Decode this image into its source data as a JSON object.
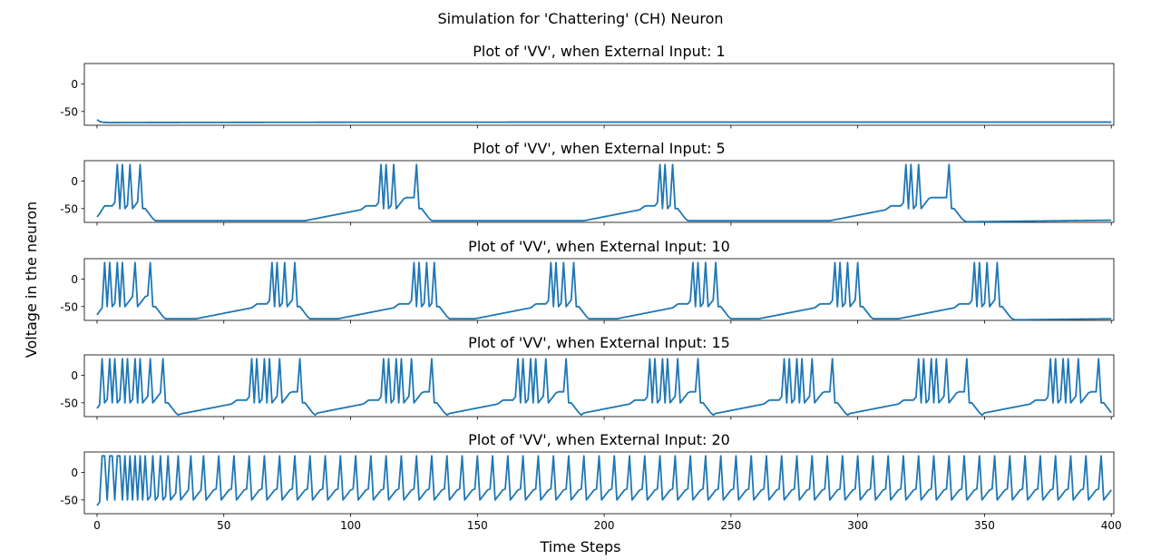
{
  "figure": {
    "suptitle": "Simulation for 'Chattering' (CH) Neuron",
    "xlabel": "Time Steps",
    "ylabel": "Voltage in the neuron"
  },
  "chart_data": [
    {
      "type": "line",
      "title": "Plot of 'VV', when External Input: 1",
      "xlim": [
        -5,
        401
      ],
      "ylim": [
        -75,
        37
      ],
      "xticks": [
        "0",
        "50",
        "100",
        "150",
        "200",
        "250",
        "300",
        "350",
        "400"
      ],
      "yticks": [
        "0",
        "-50"
      ],
      "color": "#1f77b4",
      "sim": {
        "input": 1,
        "steps": 401,
        "v0": -65
      },
      "x": [
        0,
        1,
        2,
        5,
        10,
        20,
        50,
        100,
        200,
        300,
        400
      ],
      "y": [
        -65,
        -68,
        -69.5,
        -70.2,
        -70.1,
        -70,
        -69.8,
        -69.5,
        -69.3,
        -69.3,
        -69.3
      ]
    },
    {
      "type": "line",
      "title": "Plot of 'VV', when External Input: 5",
      "xlim": [
        -5,
        401
      ],
      "ylim": [
        -75,
        37
      ],
      "xticks": [
        "0",
        "50",
        "100",
        "150",
        "200",
        "250",
        "300",
        "350",
        "400"
      ],
      "yticks": [
        "0",
        "-50"
      ],
      "color": "#1f77b4",
      "sim": {
        "input": 5,
        "steps": 401,
        "v0": -65
      },
      "spikes": [
        8,
        10,
        13,
        17,
        112,
        114,
        117,
        126,
        222,
        224,
        227,
        319,
        321,
        324,
        336
      ]
    },
    {
      "type": "line",
      "title": "Plot of 'VV', when External Input: 10",
      "xlim": [
        -5,
        401
      ],
      "ylim": [
        -75,
        37
      ],
      "xticks": [
        "0",
        "50",
        "100",
        "150",
        "200",
        "250",
        "300",
        "350",
        "400"
      ],
      "yticks": [
        "0",
        "-50"
      ],
      "color": "#1f77b4",
      "sim": {
        "input": 10,
        "steps": 401,
        "v0": -65
      },
      "spikes": [
        3,
        5,
        8,
        10,
        15,
        21,
        69,
        71,
        74,
        78,
        125,
        127,
        130,
        133,
        179,
        181,
        184,
        188,
        235,
        237,
        240,
        244,
        291,
        293,
        296,
        300,
        346,
        348,
        351,
        355
      ]
    },
    {
      "type": "line",
      "title": "Plot of 'VV', when External Input: 15",
      "xlim": [
        -5,
        401
      ],
      "ylim": [
        -75,
        37
      ],
      "xticks": [
        "0",
        "50",
        "100",
        "150",
        "200",
        "250",
        "300",
        "350",
        "400"
      ],
      "yticks": [
        "0",
        "-50"
      ],
      "color": "#1f77b4",
      "sim": {
        "input": 15,
        "steps": 401,
        "v0": -60
      },
      "spikes": [
        2,
        5,
        7,
        10,
        12,
        15,
        17,
        21,
        26,
        61,
        63,
        66,
        68,
        72,
        80,
        113,
        115,
        118,
        120,
        124,
        132,
        166,
        168,
        171,
        173,
        177,
        185,
        218,
        220,
        223,
        225,
        229,
        237,
        271,
        273,
        276,
        278,
        282,
        290,
        324,
        326,
        329,
        331,
        335,
        343,
        376,
        378,
        381,
        383,
        387,
        395
      ]
    },
    {
      "type": "line",
      "title": "Plot of 'VV', when External Input: 20",
      "xlim": [
        -5,
        401
      ],
      "ylim": [
        -75,
        37
      ],
      "xticks": [
        "0",
        "50",
        "100",
        "150",
        "200",
        "250",
        "300",
        "350",
        "400"
      ],
      "yticks": [
        "0",
        "-50"
      ],
      "color": "#1f77b4",
      "sim": {
        "input": 20,
        "steps": 401,
        "v0": -60
      },
      "spikes": [
        2,
        3,
        5,
        6,
        8,
        9,
        11,
        13,
        15,
        17,
        19,
        22,
        25,
        28,
        32,
        37,
        42,
        48,
        54,
        60,
        66,
        72,
        78,
        84,
        90,
        96,
        102,
        108,
        114,
        120,
        126,
        132,
        138,
        144,
        150,
        156,
        162,
        168,
        174,
        180,
        186,
        192,
        198,
        204,
        210,
        216,
        222,
        228,
        234,
        240,
        246,
        252,
        258,
        264,
        270,
        276,
        282,
        288,
        294,
        300,
        306,
        312,
        318,
        324,
        330,
        336,
        342,
        348,
        354,
        360,
        366,
        372,
        378,
        384,
        390,
        396,
        401
      ]
    }
  ]
}
